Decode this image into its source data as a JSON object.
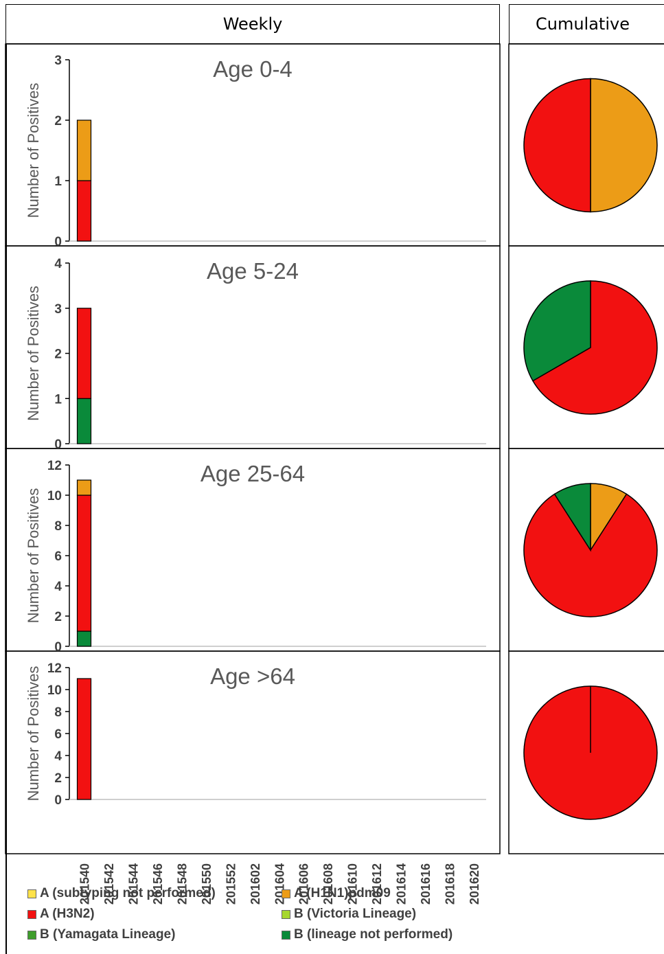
{
  "header": {
    "weekly": "Weekly",
    "cumulative": "Cumulative"
  },
  "ylabel": "Number of Positives",
  "x_weeks": [
    "201540",
    "201542",
    "201544",
    "201546",
    "201548",
    "201550",
    "201552",
    "201602",
    "201604",
    "201606",
    "201608",
    "201610",
    "201612",
    "201614",
    "201616",
    "201618",
    "201620"
  ],
  "series_colors": {
    "A (subtyping not performed)": "#FFE24A",
    "A (H1N1)pdm09": "#EC9C17",
    "A (H3N2)": "#F21111",
    "B (Victoria Lineage)": "#A6D72E",
    "B (Yamagata Lineage)": "#3F9E2C",
    "B (lineage not performed)": "#0A8A3A"
  },
  "legend": {
    "items": [
      {
        "label": "A (subtyping not performed)",
        "color": "#FFE24A"
      },
      {
        "label": "A (H1N1)pdm09",
        "color": "#EC9C17"
      },
      {
        "label": "A (H3N2)",
        "color": "#F21111"
      },
      {
        "label": "B (Victoria Lineage)",
        "color": "#A6D72E"
      },
      {
        "label": "B (Yamagata Lineage)",
        "color": "#3F9E2C"
      },
      {
        "label": "B (lineage not performed)",
        "color": "#0A8A3A"
      }
    ]
  },
  "chart_data": [
    {
      "type": "bar",
      "title": "Age 0-4",
      "ylabel": "Number of Positives",
      "ylim": [
        0,
        3
      ],
      "yticks": [
        0,
        1,
        2,
        3
      ],
      "categories": [
        "201540"
      ],
      "series": [
        {
          "name": "B (lineage not performed)",
          "values": [
            0
          ]
        },
        {
          "name": "A (H3N2)",
          "values": [
            1
          ]
        },
        {
          "name": "A (H1N1)pdm09",
          "values": [
            1
          ]
        }
      ],
      "pie": [
        {
          "name": "A (H1N1)pdm09",
          "value": 1
        },
        {
          "name": "A (H3N2)",
          "value": 1
        }
      ]
    },
    {
      "type": "bar",
      "title": "Age 5-24",
      "ylabel": "Number of Positives",
      "ylim": [
        0,
        4
      ],
      "yticks": [
        0,
        1,
        2,
        3,
        4
      ],
      "categories": [
        "201540"
      ],
      "series": [
        {
          "name": "B (lineage not performed)",
          "values": [
            1
          ]
        },
        {
          "name": "A (H3N2)",
          "values": [
            2
          ]
        },
        {
          "name": "A (H1N1)pdm09",
          "values": [
            0
          ]
        }
      ],
      "pie": [
        {
          "name": "A (H3N2)",
          "value": 2
        },
        {
          "name": "B (lineage not performed)",
          "value": 1
        }
      ]
    },
    {
      "type": "bar",
      "title": "Age 25-64",
      "ylabel": "Number of Positives",
      "ylim": [
        0,
        12
      ],
      "yticks": [
        0,
        2,
        4,
        6,
        8,
        10,
        12
      ],
      "categories": [
        "201540"
      ],
      "series": [
        {
          "name": "B (lineage not performed)",
          "values": [
            1
          ]
        },
        {
          "name": "A (H3N2)",
          "values": [
            9
          ]
        },
        {
          "name": "A (H1N1)pdm09",
          "values": [
            1
          ]
        }
      ],
      "pie": [
        {
          "name": "A (H1N1)pdm09",
          "value": 1
        },
        {
          "name": "A (H3N2)",
          "value": 9
        },
        {
          "name": "B (lineage not performed)",
          "value": 1
        }
      ]
    },
    {
      "type": "bar",
      "title": "Age >64",
      "ylabel": "Number of Positives",
      "ylim": [
        0,
        12
      ],
      "yticks": [
        0,
        2,
        4,
        6,
        8,
        10,
        12
      ],
      "categories": [
        "201540"
      ],
      "series": [
        {
          "name": "B (lineage not performed)",
          "values": [
            0
          ]
        },
        {
          "name": "A (H3N2)",
          "values": [
            11
          ]
        },
        {
          "name": "A (H1N1)pdm09",
          "values": [
            0
          ]
        }
      ],
      "pie": [
        {
          "name": "A (H3N2)",
          "value": 11
        }
      ]
    }
  ]
}
